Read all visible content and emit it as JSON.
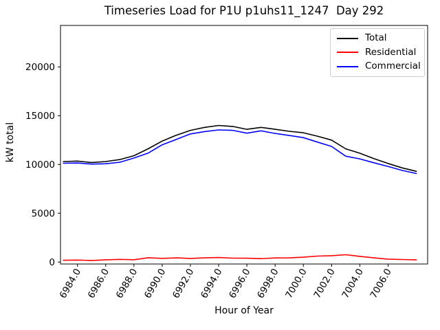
{
  "figure": {
    "background": "#ffffff"
  },
  "chart_data": {
    "type": "line",
    "title": "Timeseries Load for P1U p1uhs11_1247  Day 292",
    "xlabel": "Hour of Year",
    "ylabel": "kW total",
    "grid": false,
    "xlim": [
      6982.8,
      7008.8
    ],
    "ylim": [
      -200,
      24250
    ],
    "x_ticks": [
      6984,
      6986,
      6988,
      6990,
      6992,
      6994,
      6996,
      6998,
      7000,
      7002,
      7004,
      7006
    ],
    "x_tick_labels": [
      "6984.0",
      "6986.0",
      "6988.0",
      "6990.0",
      "6992.0",
      "6994.0",
      "6996.0",
      "6998.0",
      "7000.0",
      "7002.0",
      "7004.0",
      "7006.0"
    ],
    "x_tick_rotation_deg": 60,
    "y_ticks": [
      0,
      5000,
      10000,
      15000,
      20000
    ],
    "y_tick_labels": [
      "0",
      "5000",
      "10000",
      "15000",
      "20000"
    ],
    "x": [
      6983,
      6984,
      6985,
      6986,
      6987,
      6988,
      6989,
      6990,
      6991,
      6992,
      6993,
      6994,
      6995,
      6996,
      6997,
      6998,
      6999,
      7000,
      7001,
      7002,
      7003,
      7004,
      7005,
      7006,
      7007,
      7008
    ],
    "series": [
      {
        "name": "Total",
        "color": "#000000",
        "values": [
          10300,
          10350,
          10200,
          10300,
          10500,
          10900,
          11600,
          12400,
          13000,
          13500,
          13800,
          14000,
          13900,
          13600,
          13800,
          13600,
          13400,
          13250,
          12900,
          12500,
          11600,
          11150,
          10600,
          10100,
          9650,
          9300
        ]
      },
      {
        "name": "Residential",
        "color": "#ff0000",
        "values": [
          180,
          200,
          160,
          230,
          270,
          240,
          440,
          380,
          430,
          370,
          430,
          460,
          400,
          390,
          350,
          420,
          430,
          500,
          610,
          650,
          750,
          580,
          430,
          300,
          260,
          230
        ]
      },
      {
        "name": "Commercial",
        "color": "#0000ff",
        "values": [
          10120,
          10150,
          10040,
          10070,
          10230,
          10660,
          11160,
          12020,
          12570,
          13130,
          13370,
          13540,
          13500,
          13210,
          13450,
          13180,
          12970,
          12750,
          12290,
          11850,
          10850,
          10570,
          10170,
          9800,
          9390,
          9070
        ]
      }
    ],
    "legend": {
      "position": "upper-right",
      "border_color": "#cccccc",
      "entries": [
        "Total",
        "Residential",
        "Commercial"
      ]
    }
  }
}
